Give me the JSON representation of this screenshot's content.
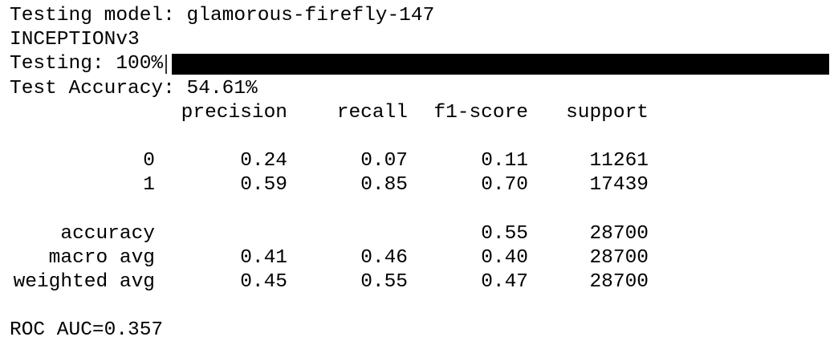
{
  "header": {
    "model_line": "Testing model: glamorous-firefly-147",
    "architecture": "INCEPTIONv3"
  },
  "progress": {
    "label": "Testing: 100%",
    "percent": 100
  },
  "accuracy_line": "Test Accuracy: 54.61%",
  "report": {
    "columns": [
      "precision",
      "recall",
      "f1-score",
      "support"
    ],
    "classes": [
      {
        "label": "0",
        "precision": "0.24",
        "recall": "0.07",
        "f1": "0.11",
        "support": "11261"
      },
      {
        "label": "1",
        "precision": "0.59",
        "recall": "0.85",
        "f1": "0.70",
        "support": "17439"
      }
    ],
    "summary": [
      {
        "label": "accuracy",
        "precision": "",
        "recall": "",
        "f1": "0.55",
        "support": "28700"
      },
      {
        "label": "macro avg",
        "precision": "0.41",
        "recall": "0.46",
        "f1": "0.40",
        "support": "28700"
      },
      {
        "label": "weighted avg",
        "precision": "0.45",
        "recall": "0.55",
        "f1": "0.47",
        "support": "28700"
      }
    ]
  },
  "roc_line": "ROC AUC=0.357"
}
